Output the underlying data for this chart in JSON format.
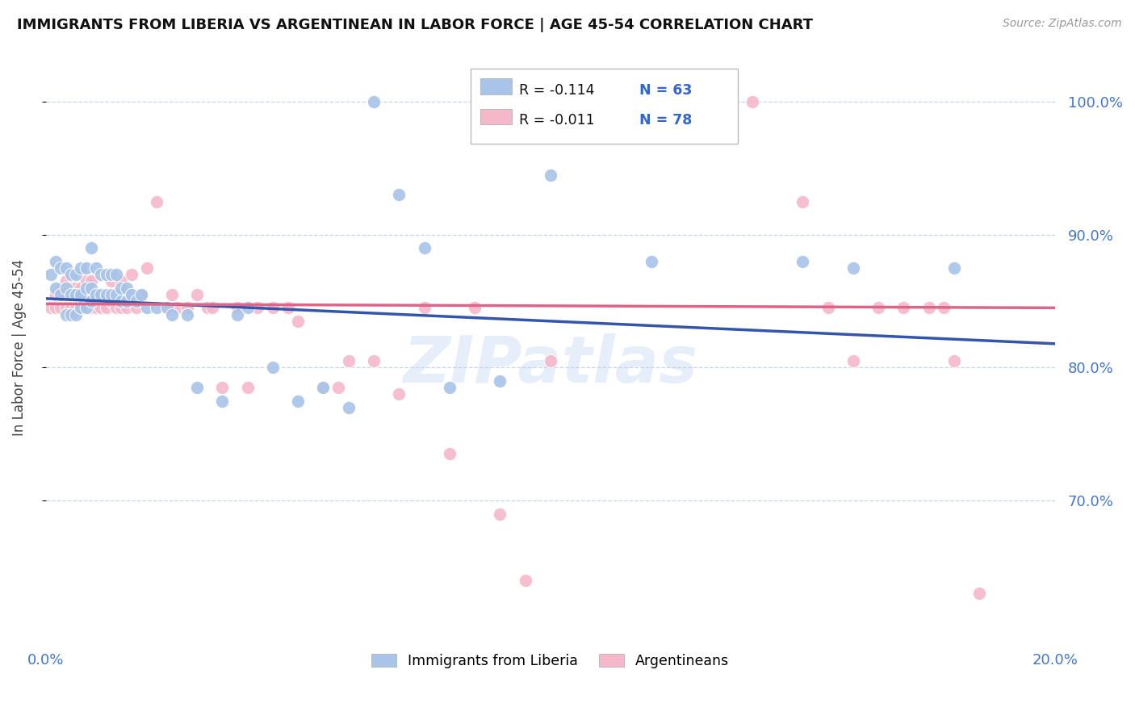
{
  "title": "IMMIGRANTS FROM LIBERIA VS ARGENTINEAN IN LABOR FORCE | AGE 45-54 CORRELATION CHART",
  "source": "Source: ZipAtlas.com",
  "ylabel": "In Labor Force | Age 45-54",
  "y_ticks": [
    0.7,
    0.8,
    0.9,
    1.0
  ],
  "y_tick_labels": [
    "70.0%",
    "80.0%",
    "90.0%",
    "100.0%"
  ],
  "x_range": [
    0.0,
    0.2
  ],
  "y_range": [
    0.595,
    1.035
  ],
  "legend_blue_r": "R = -0.114",
  "legend_blue_n": "N = 63",
  "legend_pink_r": "R = -0.011",
  "legend_pink_n": "N = 78",
  "blue_color": "#a8c4e8",
  "pink_color": "#f5b8cb",
  "blue_line_color": "#3355aa",
  "pink_line_color": "#dd6688",
  "background_color": "#ffffff",
  "watermark": "ZIPatlas",
  "blue_scatter_x": [
    0.001,
    0.002,
    0.002,
    0.003,
    0.003,
    0.004,
    0.004,
    0.004,
    0.005,
    0.005,
    0.005,
    0.006,
    0.006,
    0.006,
    0.007,
    0.007,
    0.007,
    0.008,
    0.008,
    0.008,
    0.009,
    0.009,
    0.009,
    0.01,
    0.01,
    0.011,
    0.011,
    0.012,
    0.012,
    0.013,
    0.013,
    0.014,
    0.014,
    0.015,
    0.015,
    0.016,
    0.016,
    0.017,
    0.018,
    0.019,
    0.02,
    0.022,
    0.024,
    0.025,
    0.028,
    0.03,
    0.035,
    0.038,
    0.04,
    0.045,
    0.05,
    0.055,
    0.06,
    0.065,
    0.07,
    0.075,
    0.08,
    0.09,
    0.1,
    0.12,
    0.15,
    0.16,
    0.18
  ],
  "blue_scatter_y": [
    0.87,
    0.86,
    0.88,
    0.855,
    0.875,
    0.84,
    0.86,
    0.875,
    0.84,
    0.855,
    0.87,
    0.84,
    0.855,
    0.87,
    0.845,
    0.855,
    0.875,
    0.845,
    0.86,
    0.875,
    0.85,
    0.86,
    0.89,
    0.855,
    0.875,
    0.855,
    0.87,
    0.855,
    0.87,
    0.855,
    0.87,
    0.855,
    0.87,
    0.85,
    0.86,
    0.85,
    0.86,
    0.855,
    0.85,
    0.855,
    0.845,
    0.845,
    0.845,
    0.84,
    0.84,
    0.785,
    0.775,
    0.84,
    0.845,
    0.8,
    0.775,
    0.785,
    0.77,
    1.0,
    0.93,
    0.89,
    0.785,
    0.79,
    0.945,
    0.88,
    0.88,
    0.875,
    0.875
  ],
  "pink_scatter_x": [
    0.001,
    0.002,
    0.002,
    0.003,
    0.003,
    0.003,
    0.004,
    0.004,
    0.004,
    0.005,
    0.005,
    0.006,
    0.006,
    0.006,
    0.007,
    0.007,
    0.008,
    0.008,
    0.008,
    0.009,
    0.009,
    0.009,
    0.01,
    0.01,
    0.011,
    0.011,
    0.012,
    0.012,
    0.013,
    0.013,
    0.014,
    0.015,
    0.015,
    0.016,
    0.016,
    0.017,
    0.018,
    0.019,
    0.02,
    0.022,
    0.024,
    0.025,
    0.026,
    0.028,
    0.03,
    0.032,
    0.033,
    0.035,
    0.038,
    0.04,
    0.042,
    0.045,
    0.048,
    0.05,
    0.055,
    0.058,
    0.06,
    0.065,
    0.07,
    0.075,
    0.08,
    0.085,
    0.09,
    0.095,
    0.1,
    0.11,
    0.12,
    0.13,
    0.14,
    0.15,
    0.155,
    0.16,
    0.165,
    0.17,
    0.175,
    0.178,
    0.18,
    0.185
  ],
  "pink_scatter_y": [
    0.845,
    0.845,
    0.855,
    0.845,
    0.855,
    0.86,
    0.845,
    0.855,
    0.865,
    0.845,
    0.86,
    0.845,
    0.855,
    0.86,
    0.845,
    0.86,
    0.845,
    0.855,
    0.865,
    0.845,
    0.855,
    0.865,
    0.845,
    0.855,
    0.845,
    0.855,
    0.855,
    0.845,
    0.85,
    0.865,
    0.845,
    0.845,
    0.865,
    0.845,
    0.855,
    0.87,
    0.845,
    0.855,
    0.875,
    0.925,
    0.845,
    0.855,
    0.845,
    0.845,
    0.855,
    0.845,
    0.845,
    0.785,
    0.845,
    0.785,
    0.845,
    0.845,
    0.845,
    0.835,
    0.785,
    0.785,
    0.805,
    0.805,
    0.78,
    0.845,
    0.735,
    0.845,
    0.69,
    0.64,
    0.805,
    1.0,
    1.0,
    1.0,
    1.0,
    0.925,
    0.845,
    0.805,
    0.845,
    0.845,
    0.845,
    0.845,
    0.805,
    0.63
  ],
  "blue_line_x0": 0.0,
  "blue_line_y0": 0.852,
  "blue_line_x1": 0.2,
  "blue_line_y1": 0.818,
  "pink_line_x0": 0.0,
  "pink_line_y0": 0.848,
  "pink_line_x1": 0.2,
  "pink_line_y1": 0.845
}
